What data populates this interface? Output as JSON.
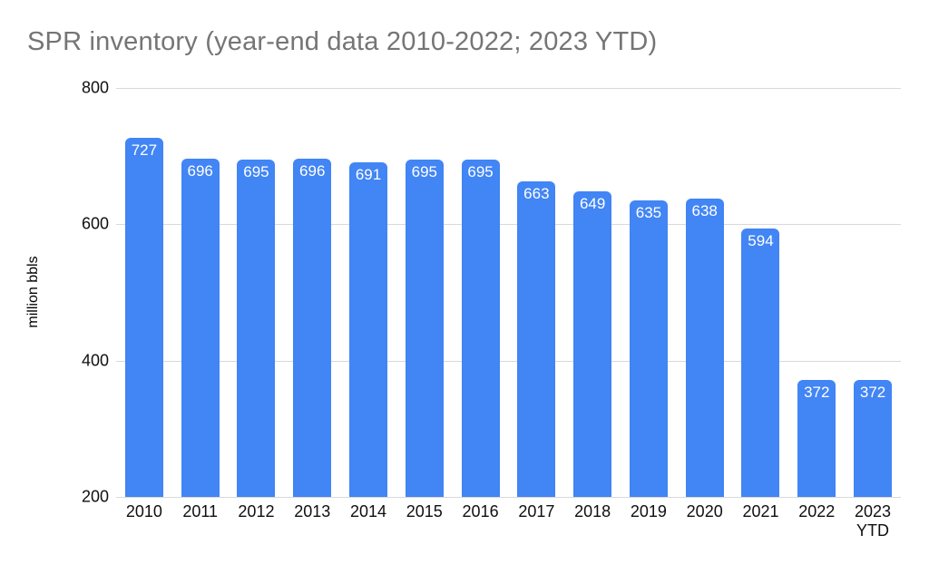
{
  "title": "SPR inventory (year-end data 2010-2022; 2023 YTD)",
  "chart_data": {
    "type": "bar",
    "title": "SPR inventory (year-end data 2010-2022; 2023 YTD)",
    "categories": [
      "2010",
      "2011",
      "2012",
      "2013",
      "2014",
      "2015",
      "2016",
      "2017",
      "2018",
      "2019",
      "2020",
      "2021",
      "2022",
      "2023 YTD"
    ],
    "values": [
      727,
      696,
      695,
      696,
      691,
      695,
      695,
      663,
      649,
      635,
      638,
      594,
      372,
      372
    ],
    "xlabel": "",
    "ylabel": "million bbls",
    "ylim": [
      200,
      800
    ],
    "yticks": [
      200,
      400,
      600,
      800
    ],
    "grid": "on",
    "legend": "none",
    "bar_color": "#4285f4",
    "value_label_color": "#ffffff",
    "gridline_color": "#d9d9d9",
    "title_color": "#757575"
  }
}
